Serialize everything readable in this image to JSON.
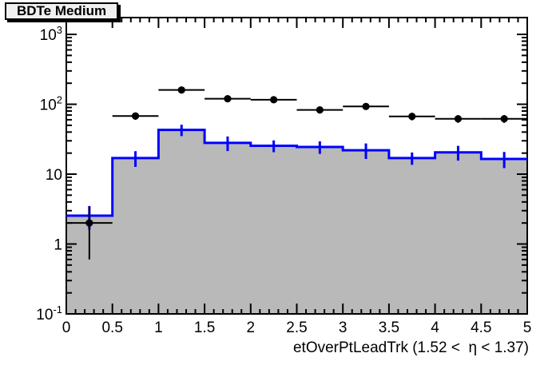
{
  "title_box": {
    "label": "BDTe Medium"
  },
  "colors": {
    "background": "#ffffff",
    "axis": "#000000",
    "hist_line": "#0000ff",
    "hist_fill": "#b9b9b9",
    "data_marker": "#000000",
    "title_box_fill": "#f0f0f0"
  },
  "chart_data": {
    "type": "histogram_with_data_points",
    "title": "BDTe Medium",
    "xlabel": "etOverPtLeadTrk (1.52 <  η < 1.37)",
    "ylabel": "",
    "x_range": [
      0,
      5
    ],
    "y_range": [
      0.1,
      1740
    ],
    "y_scale": "log",
    "grid": false,
    "legend": "none",
    "bin_edges": [
      0,
      0.5,
      1,
      1.5,
      2,
      2.5,
      3,
      3.5,
      4,
      4.5,
      5
    ],
    "x_tick_labels": [
      "0",
      "0.5",
      "1",
      "1.5",
      "2",
      "2.5",
      "3",
      "3.5",
      "4",
      "4.5",
      "5"
    ],
    "x_minor_tick_step": 0.1,
    "y_tick_labels": [
      {
        "value": 1000,
        "base": "10",
        "exp": "3"
      },
      {
        "value": 100,
        "base": "10",
        "exp": "2"
      },
      {
        "value": 10,
        "base": "10",
        "exp": ""
      },
      {
        "value": 1,
        "base": "1",
        "exp": ""
      },
      {
        "value": 0.1,
        "base": "10",
        "exp": "-1"
      }
    ],
    "series": [
      {
        "name": "background-histogram",
        "style": "filled-steps-with-error-bars",
        "line_color": "#0000ff",
        "fill_color": "#b9b9b9",
        "values": [
          2.55,
          17,
          43,
          28,
          25.5,
          24.5,
          22,
          17,
          20.5,
          16.5
        ],
        "errors": [
          0.95,
          4.3,
          8,
          6.6,
          4.9,
          5,
          5.5,
          3.4,
          4.9,
          4.3
        ]
      },
      {
        "name": "data-points",
        "style": "points-with-error-bars",
        "marker": "filled-circle",
        "color": "#000000",
        "values": [
          2,
          68,
          160,
          120,
          116,
          83,
          93,
          67,
          62,
          62
        ],
        "errors": [
          1.4,
          8.2,
          12.6,
          11,
          10.8,
          9.1,
          9.6,
          8.2,
          7.9,
          7.9
        ]
      }
    ]
  }
}
